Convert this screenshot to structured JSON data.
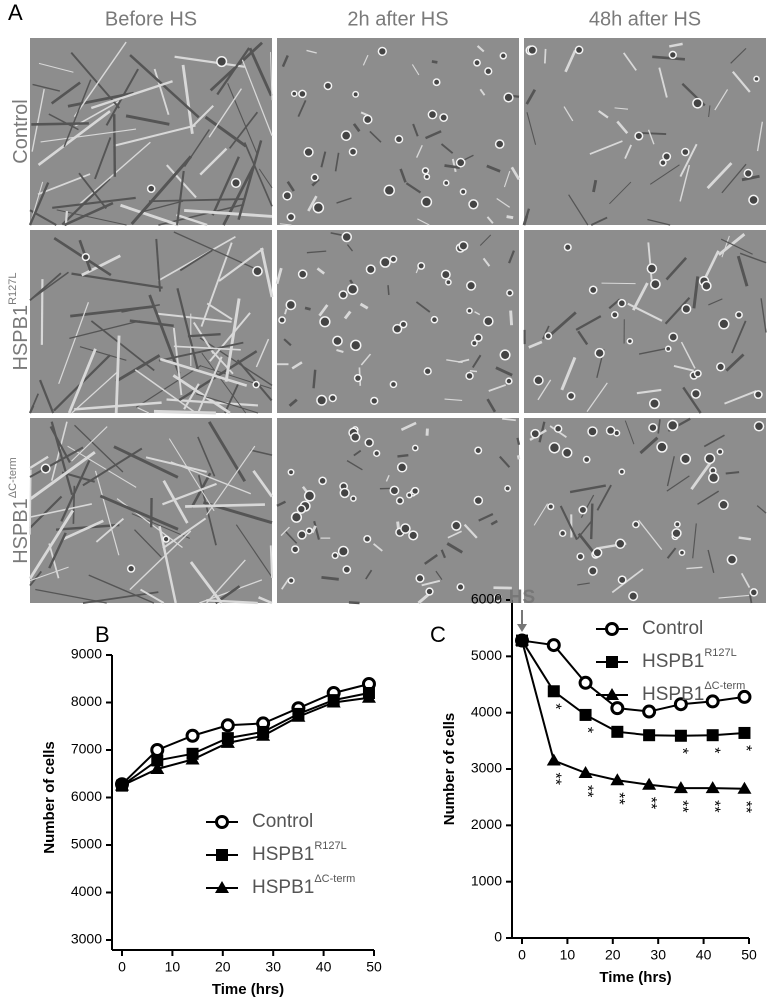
{
  "panel_a": {
    "label": "A",
    "columns": [
      "Before HS",
      "2h after HS",
      "48h after HS"
    ],
    "rows": [
      {
        "text": "Control"
      },
      {
        "text": "HSPB1",
        "superscript": "R127L"
      },
      {
        "text": "HSPB1",
        "superscript": "ΔC-term"
      }
    ]
  },
  "chart_data": [
    {
      "type": "line",
      "panel_label": "B",
      "x_label": "Time (hrs)",
      "y_label": "Number of cells",
      "x": [
        0,
        7,
        14,
        21,
        28,
        35,
        42,
        49
      ],
      "xlim": [
        0,
        50
      ],
      "xticks": [
        0,
        10,
        20,
        30,
        40,
        50
      ],
      "ylim": [
        3000,
        9000
      ],
      "yticks": [
        3000,
        4000,
        5000,
        6000,
        7000,
        8000,
        9000
      ],
      "series": [
        {
          "name": "Control",
          "marker": "circle",
          "color": "#000000",
          "values": [
            6280,
            7000,
            7300,
            7520,
            7560,
            7880,
            8200,
            8390
          ]
        },
        {
          "name": "HSPB1",
          "name_superscript": "R127L",
          "marker": "square",
          "color": "#000000",
          "values": [
            6250,
            6780,
            6920,
            7250,
            7380,
            7760,
            8050,
            8200
          ]
        },
        {
          "name": "HSPB1",
          "name_superscript": "ΔC-term",
          "marker": "triangle",
          "color": "#000000",
          "values": [
            6250,
            6600,
            6800,
            7150,
            7300,
            7700,
            8000,
            8100
          ]
        }
      ]
    },
    {
      "type": "line",
      "panel_label": "C",
      "x_label": "Time (hrs)",
      "y_label": "Number of cells",
      "annotation": "HS",
      "x": [
        0,
        7,
        14,
        21,
        28,
        35,
        42,
        49
      ],
      "xlim": [
        0,
        50
      ],
      "xticks": [
        0,
        10,
        20,
        30,
        40,
        50
      ],
      "ylim": [
        0,
        6000
      ],
      "yticks": [
        0,
        1000,
        2000,
        3000,
        4000,
        5000,
        6000
      ],
      "series": [
        {
          "name": "Control",
          "marker": "circle",
          "color": "#000000",
          "values": [
            5280,
            5200,
            4530,
            4080,
            4020,
            4150,
            4200,
            4280
          ]
        },
        {
          "name": "HSPB1",
          "name_superscript": "R127L",
          "marker": "square",
          "color": "#000000",
          "values": [
            5280,
            4380,
            3960,
            3660,
            3600,
            3590,
            3600,
            3640
          ],
          "significance": [
            null,
            "*",
            "*",
            null,
            null,
            "*",
            "*",
            "*"
          ]
        },
        {
          "name": "HSPB1",
          "name_superscript": "ΔC-term",
          "marker": "triangle",
          "color": "#000000",
          "values": [
            5280,
            3150,
            2930,
            2800,
            2720,
            2660,
            2660,
            2650
          ],
          "significance": [
            null,
            "**",
            "**",
            "**",
            "**",
            "**",
            "**",
            "**"
          ]
        }
      ]
    }
  ]
}
